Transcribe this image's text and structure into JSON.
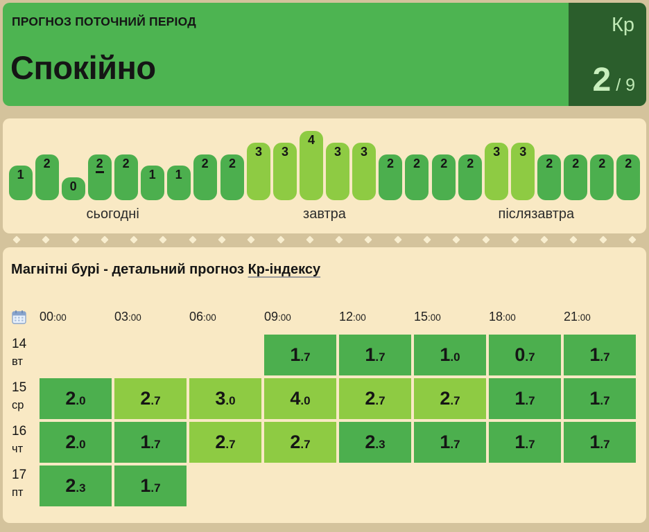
{
  "palette": {
    "page_bg": "#d4c39c",
    "panel_bg": "#f9e9c4",
    "header_green": "#4db451",
    "kp_box_green": "#2b5e2c",
    "kp_text": "#bfe9b5",
    "pill_dark": "#4caf4e",
    "pill_light": "#8ecb43",
    "text_dark": "#151515",
    "diamond": "#f9efd0"
  },
  "header": {
    "kicker": "ПРОГНОЗ ПОТОЧНИЙ ПЕРІОД",
    "state": "Спокійно",
    "kp_label": "Кр",
    "kp_value": "2",
    "kp_scale": "/ 9"
  },
  "forecast_strip": {
    "pill_light_min": 3,
    "days": [
      {
        "label": "сьогодні",
        "values": [
          1,
          2,
          0,
          2,
          2,
          1,
          1,
          2
        ],
        "current_index": 3
      },
      {
        "label": "завтра",
        "values": [
          2,
          3,
          3,
          4,
          3,
          3,
          2,
          2
        ],
        "current_index": -1
      },
      {
        "label": "післязавтра",
        "values": [
          2,
          2,
          3,
          3,
          2,
          2,
          2,
          2
        ],
        "current_index": -1
      }
    ]
  },
  "separator": {
    "dots": 22
  },
  "table": {
    "title_prefix": "Магнітні бурі - детальний прогноз ",
    "title_link": "Кр-індексу",
    "hours": [
      "00:00",
      "03:00",
      "06:00",
      "09:00",
      "12:00",
      "15:00",
      "18:00",
      "21:00"
    ],
    "light_threshold": 2.7,
    "rows": [
      {
        "date": "14",
        "weekday": "вт",
        "values": [
          null,
          null,
          null,
          "1.7",
          "1.7",
          "1.0",
          "0.7",
          "1.7"
        ]
      },
      {
        "date": "15",
        "weekday": "ср",
        "values": [
          "2.0",
          "2.7",
          "3.0",
          "4.0",
          "2.7",
          "2.7",
          "1.7",
          "1.7"
        ]
      },
      {
        "date": "16",
        "weekday": "чт",
        "values": [
          "2.0",
          "1.7",
          "2.7",
          "2.7",
          "2.3",
          "1.7",
          "1.7",
          "1.7"
        ]
      },
      {
        "date": "17",
        "weekday": "пт",
        "values": [
          "2.3",
          "1.7",
          null,
          null,
          null,
          null,
          null,
          null
        ]
      }
    ]
  },
  "chart_data": {
    "type": "bar",
    "title": "Kp index 3-hour forecast",
    "categories": [
      "сьогодні",
      "завтра",
      "післязавтра"
    ],
    "series": [
      {
        "name": "сьогодні",
        "values": [
          1,
          2,
          0,
          2,
          2,
          1,
          1,
          2
        ]
      },
      {
        "name": "завтра",
        "values": [
          2,
          3,
          3,
          4,
          3,
          3,
          2,
          2
        ]
      },
      {
        "name": "післязавтра",
        "values": [
          2,
          2,
          3,
          3,
          2,
          2,
          2,
          2
        ]
      }
    ],
    "ylim": [
      0,
      9
    ]
  }
}
